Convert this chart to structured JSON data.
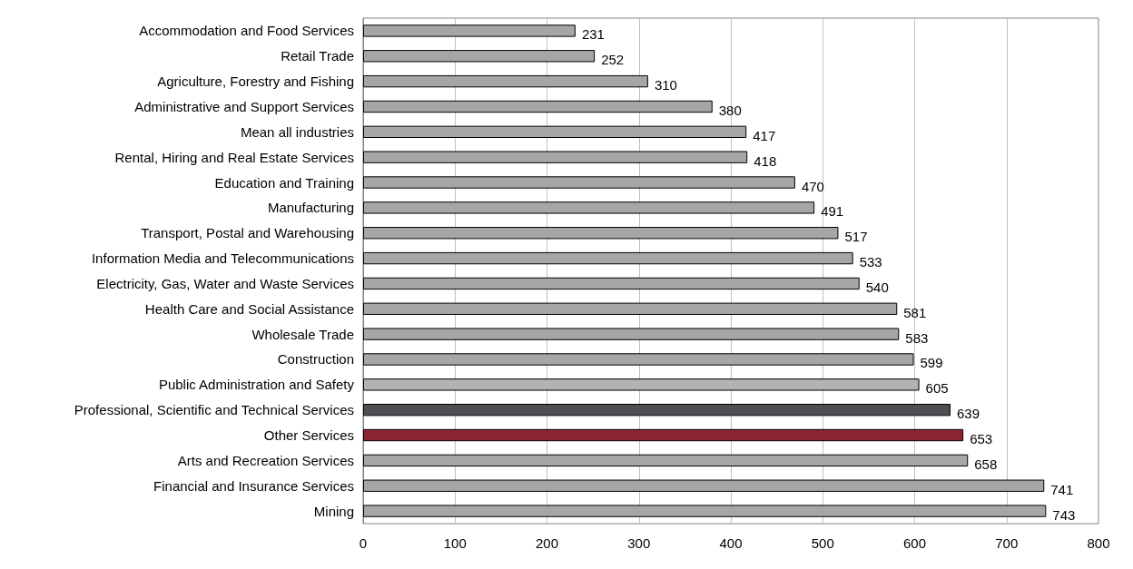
{
  "chart_data": {
    "type": "bar",
    "orientation": "horizontal",
    "categories": [
      "Accommodation and Food Services",
      "Retail Trade",
      "Agriculture, Forestry and Fishing",
      "Administrative and Support Services",
      "Mean all industries",
      "Rental, Hiring and Real Estate Services",
      "Education and Training",
      "Manufacturing",
      "Transport, Postal and Warehousing",
      "Information Media and Telecommunications",
      "Electricity, Gas, Water and Waste Services",
      "Health Care and Social Assistance",
      "Wholesale Trade",
      "Construction",
      "Public Administration and Safety",
      "Professional, Scientific and Technical Services",
      "Other Services",
      "Arts and Recreation Services",
      "Financial and Insurance Services",
      "Mining"
    ],
    "values": [
      231,
      252,
      310,
      380,
      417,
      418,
      470,
      491,
      517,
      533,
      540,
      581,
      583,
      599,
      605,
      639,
      653,
      658,
      741,
      743
    ],
    "colors": [
      "#a6a6a6",
      "#a6a6a6",
      "#a6a6a6",
      "#a6a6a6",
      "#a6a6a6",
      "#a6a6a6",
      "#a6a6a6",
      "#a6a6a6",
      "#a6a6a6",
      "#a6a6a6",
      "#a6a6a6",
      "#a6a6a6",
      "#a6a6a6",
      "#a6a6a6",
      "#b3b3b3",
      "#4d4f53",
      "#8b2332",
      "#a6a6a6",
      "#a6a6a6",
      "#a6a6a6"
    ],
    "xlim": [
      0,
      800
    ],
    "xticks": [
      0,
      100,
      200,
      300,
      400,
      500,
      600,
      700,
      800
    ],
    "grid": "x",
    "data_labels": true
  }
}
